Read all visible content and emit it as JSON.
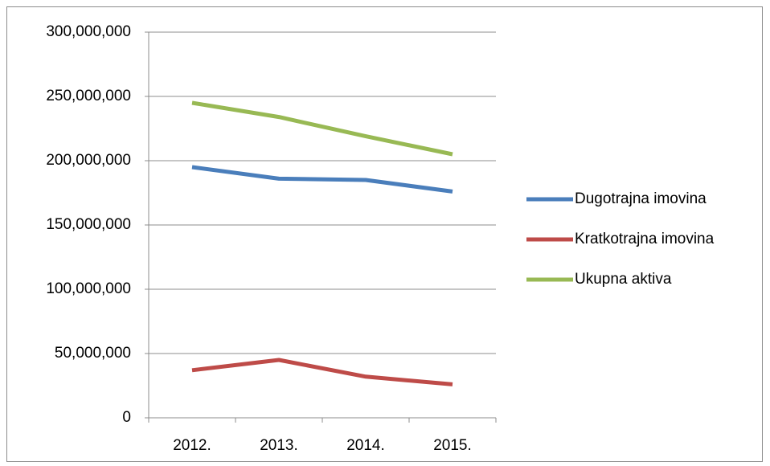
{
  "chart_data": {
    "type": "line",
    "categories": [
      "2012.",
      "2013.",
      "2014.",
      "2015."
    ],
    "series": [
      {
        "name": "Dugotrajna imovina",
        "color": "#4a7ebb",
        "values": [
          195000000,
          186000000,
          185000000,
          176000000
        ]
      },
      {
        "name": "Kratkotrajna imovina",
        "color": "#be4b48",
        "values": [
          37000000,
          45000000,
          32000000,
          26000000
        ]
      },
      {
        "name": "Ukupna aktiva",
        "color": "#98b954",
        "values": [
          245000000,
          234000000,
          219000000,
          205000000
        ]
      }
    ],
    "ylim": [
      0,
      300000000
    ],
    "yticks": [
      0,
      {
        "value": 50000000,
        "label": "50,000,000"
      },
      {
        "value": 100000000,
        "label": "100,000,000"
      },
      {
        "value": 150000000,
        "label": "150,000,000"
      },
      {
        "value": 200000000,
        "label": "200,000,000"
      },
      {
        "value": 250000000,
        "label": "250,000,000"
      },
      {
        "value": 300000000,
        "label": "300,000,000"
      }
    ],
    "grid": true,
    "legend": "right"
  }
}
